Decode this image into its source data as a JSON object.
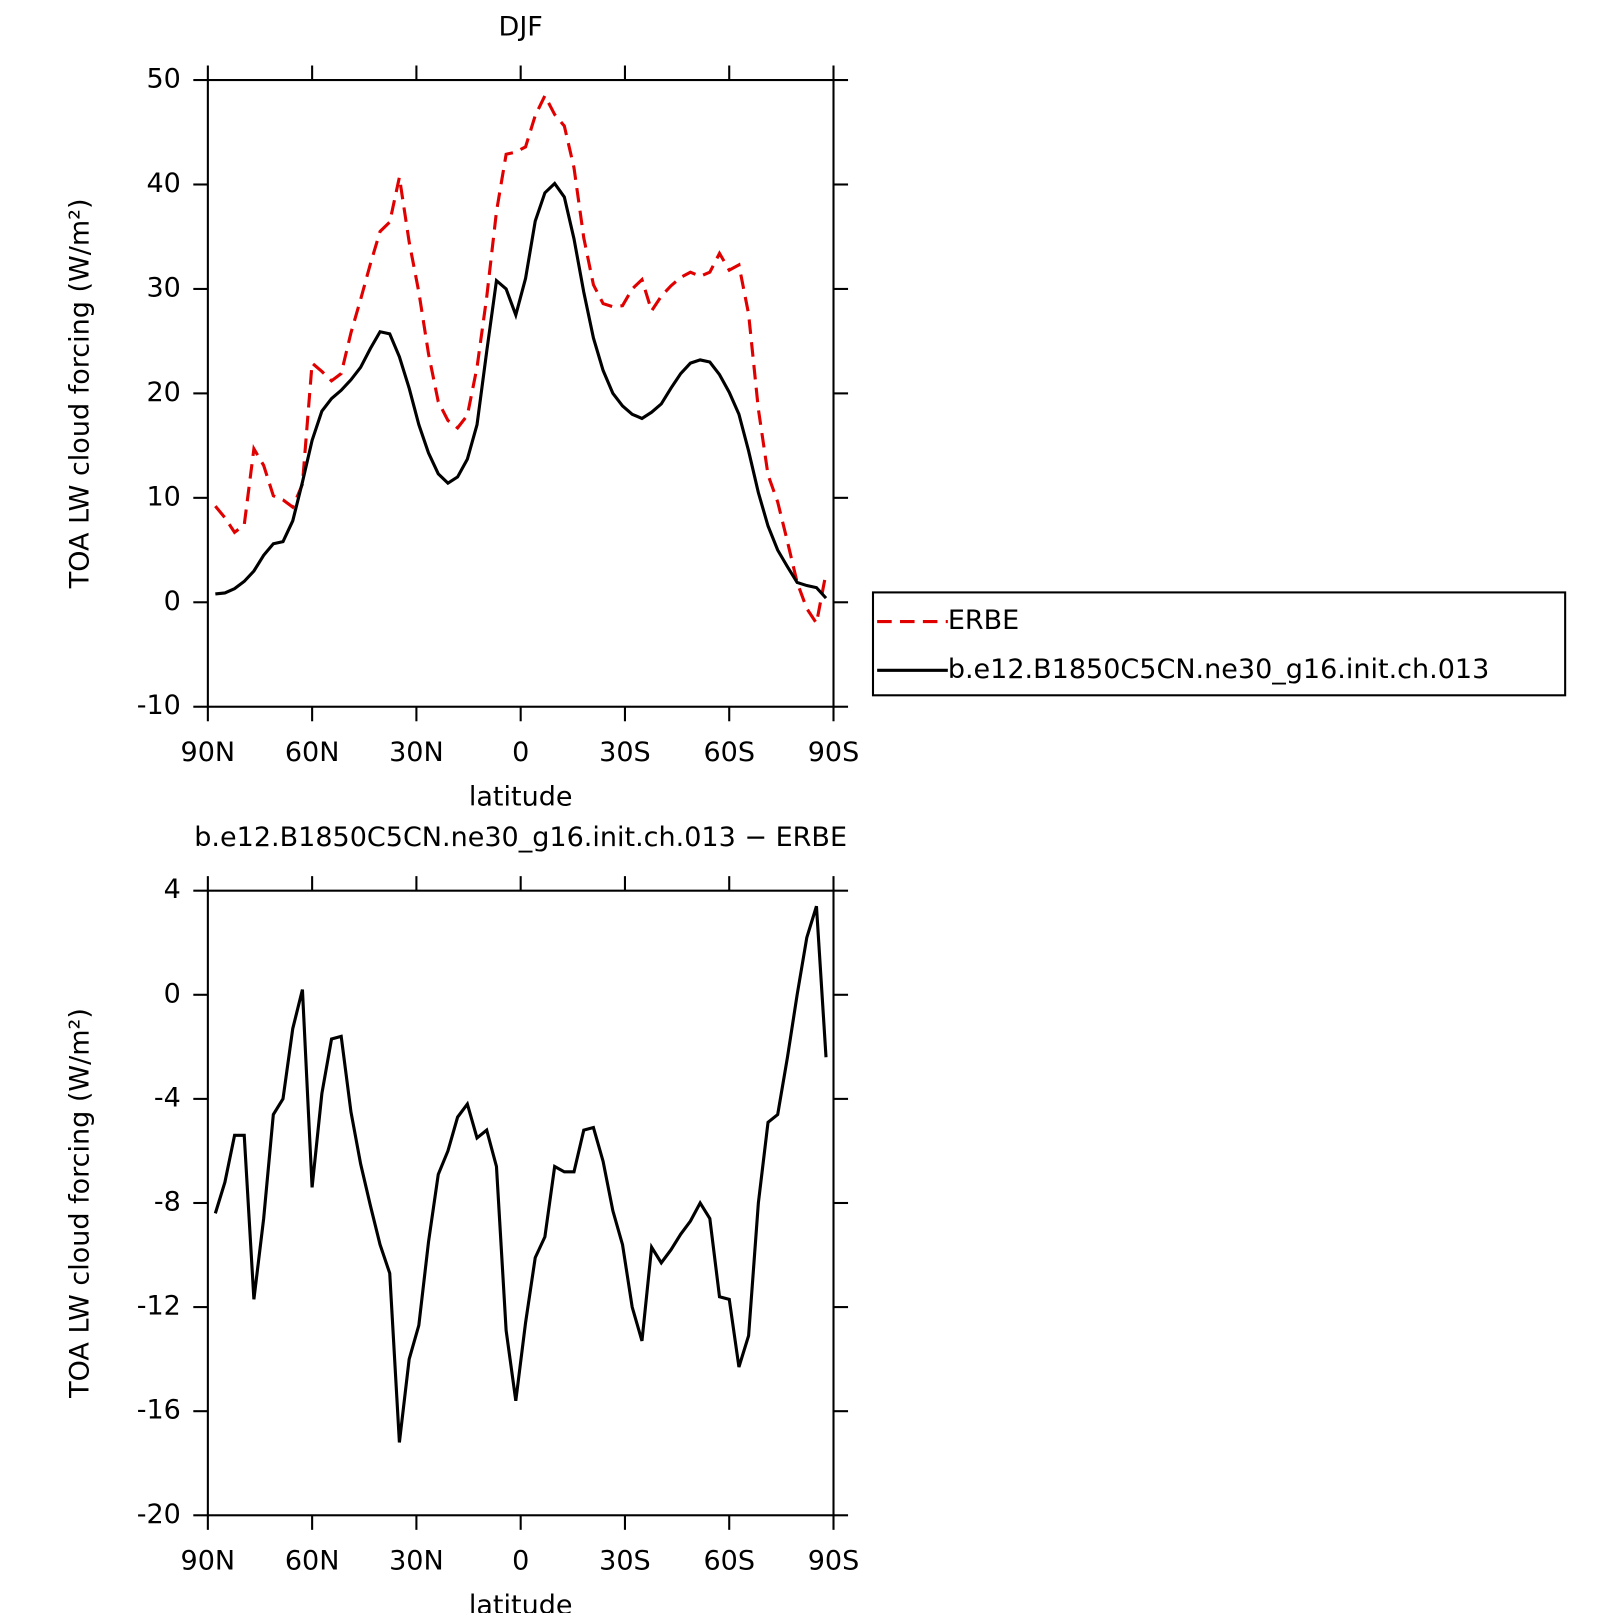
{
  "chart_data": [
    {
      "type": "line",
      "title": "DJF",
      "xlabel": "latitude",
      "ylabel": "TOA LW cloud forcing (W/m²)",
      "x": [
        87.86,
        85.1,
        82.31,
        79.53,
        76.74,
        73.95,
        71.16,
        68.37,
        65.58,
        62.79,
        60.0,
        57.21,
        54.42,
        51.63,
        48.84,
        46.04,
        43.25,
        40.46,
        37.67,
        34.88,
        32.09,
        29.3,
        26.51,
        23.72,
        20.93,
        18.14,
        15.35,
        12.56,
        9.77,
        6.98,
        4.19,
        1.4,
        -1.4,
        -4.19,
        -6.98,
        -9.77,
        -12.56,
        -15.35,
        -18.14,
        -20.93,
        -23.72,
        -26.51,
        -29.3,
        -32.09,
        -34.88,
        -37.67,
        -40.46,
        -43.25,
        -46.04,
        -48.84,
        -51.63,
        -54.42,
        -57.21,
        -60.0,
        -62.79,
        -65.58,
        -68.37,
        -71.16,
        -73.95,
        -76.74,
        -79.53,
        -82.31,
        -85.1,
        -87.86
      ],
      "series": [
        {
          "name": "ERBE",
          "color": "#e00000",
          "dashed": true,
          "values": [
            9.2,
            8.1,
            6.7,
            7.4,
            14.7,
            13.1,
            10.2,
            9.8,
            9.1,
            11.3,
            22.9,
            22.1,
            21.2,
            21.9,
            25.8,
            29.0,
            32.4,
            35.5,
            36.4,
            40.7,
            34.5,
            29.7,
            23.8,
            19.2,
            17.4,
            16.7,
            17.9,
            22.5,
            29.2,
            37.4,
            42.9,
            43.1,
            43.6,
            46.6,
            48.5,
            46.7,
            45.6,
            41.6,
            34.9,
            30.4,
            28.6,
            28.3,
            28.4,
            30.0,
            30.9,
            27.9,
            29.3,
            30.3,
            31.1,
            31.6,
            31.2,
            31.6,
            33.4,
            31.8,
            32.3,
            27.6,
            18.5,
            12.2,
            9.6,
            5.8,
            1.9,
            -0.6,
            -2.0,
            2.8
          ]
        },
        {
          "name": "b.e12.B1850C5CN.ne30_g16.init.ch.013",
          "color": "#000000",
          "dashed": false,
          "values": [
            0.8,
            0.9,
            1.3,
            2.0,
            3.0,
            4.5,
            5.6,
            5.8,
            7.8,
            11.5,
            15.5,
            18.3,
            19.5,
            20.3,
            21.3,
            22.5,
            24.3,
            25.9,
            25.7,
            23.5,
            20.5,
            17.0,
            14.3,
            12.3,
            11.4,
            12.0,
            13.7,
            17.0,
            24.0,
            30.8,
            30.0,
            27.5,
            31.0,
            36.5,
            39.2,
            40.1,
            38.8,
            34.8,
            29.7,
            25.3,
            22.2,
            20.0,
            18.8,
            18.0,
            17.6,
            18.2,
            19.0,
            20.5,
            21.9,
            22.9,
            23.2,
            23.0,
            21.8,
            20.1,
            18.0,
            14.5,
            10.5,
            7.3,
            5.0,
            3.4,
            1.9,
            1.6,
            1.4,
            0.4
          ]
        }
      ],
      "xlim": [
        90,
        -90
      ],
      "xticks": [
        {
          "value": 90,
          "label": "90N"
        },
        {
          "value": 60,
          "label": "60N"
        },
        {
          "value": 30,
          "label": "30N"
        },
        0,
        {
          "value": -30,
          "label": "30S"
        },
        {
          "value": -60,
          "label": "60S"
        },
        {
          "value": -90,
          "label": "90S"
        }
      ],
      "ylim": [
        -10,
        50
      ],
      "yticks": [
        -10,
        0,
        10,
        20,
        30,
        40,
        50
      ],
      "legend": "right"
    },
    {
      "type": "line",
      "title": "b.e12.B1850C5CN.ne30_g16.init.ch.013 − ERBE",
      "xlabel": "latitude",
      "ylabel": "TOA LW cloud forcing (W/m²)",
      "x": [
        87.86,
        85.1,
        82.31,
        79.53,
        76.74,
        73.95,
        71.16,
        68.37,
        65.58,
        62.79,
        60.0,
        57.21,
        54.42,
        51.63,
        48.84,
        46.04,
        43.25,
        40.46,
        37.67,
        34.88,
        32.09,
        29.3,
        26.51,
        23.72,
        20.93,
        18.14,
        15.35,
        12.56,
        9.77,
        6.98,
        4.19,
        1.4,
        -1.4,
        -4.19,
        -6.98,
        -9.77,
        -12.56,
        -15.35,
        -18.14,
        -20.93,
        -23.72,
        -26.51,
        -29.3,
        -32.09,
        -34.88,
        -37.67,
        -40.46,
        -43.25,
        -46.04,
        -48.84,
        -51.63,
        -54.42,
        -57.21,
        -60.0,
        -62.79,
        -65.58,
        -68.37,
        -71.16,
        -73.95,
        -76.74,
        -79.53,
        -82.31,
        -85.1,
        -87.86
      ],
      "values": [
        -8.4,
        -7.2,
        -5.4,
        -5.4,
        -11.7,
        -8.6,
        -4.6,
        -4.0,
        -1.3,
        0.2,
        -7.4,
        -3.8,
        -1.7,
        -1.6,
        -4.5,
        -6.5,
        -8.1,
        -9.6,
        -10.7,
        -17.2,
        -14.0,
        -12.7,
        -9.5,
        -6.9,
        -6.0,
        -4.7,
        -4.2,
        -5.5,
        -5.2,
        -6.6,
        -12.9,
        -15.6,
        -12.6,
        -10.1,
        -9.3,
        -6.6,
        -6.8,
        -6.8,
        -5.2,
        -5.1,
        -6.4,
        -8.3,
        -9.6,
        -12.0,
        -13.3,
        -9.7,
        -10.3,
        -9.8,
        -9.2,
        -8.7,
        -8.0,
        -8.6,
        -11.6,
        -11.7,
        -14.3,
        -13.1,
        -8.0,
        -4.9,
        -4.6,
        -2.4,
        0.0,
        2.2,
        3.4,
        -2.4
      ],
      "color": "#000000",
      "xlim": [
        90,
        -90
      ],
      "xticks": [
        {
          "value": 90,
          "label": "90N"
        },
        {
          "value": 60,
          "label": "60N"
        },
        {
          "value": 30,
          "label": "30N"
        },
        0,
        {
          "value": -30,
          "label": "30S"
        },
        {
          "value": -60,
          "label": "60S"
        },
        {
          "value": -90,
          "label": "90S"
        }
      ],
      "ylim": [
        -20,
        4
      ],
      "yticks": [
        -20,
        -16,
        -12,
        -8,
        -4,
        0,
        4
      ]
    }
  ]
}
